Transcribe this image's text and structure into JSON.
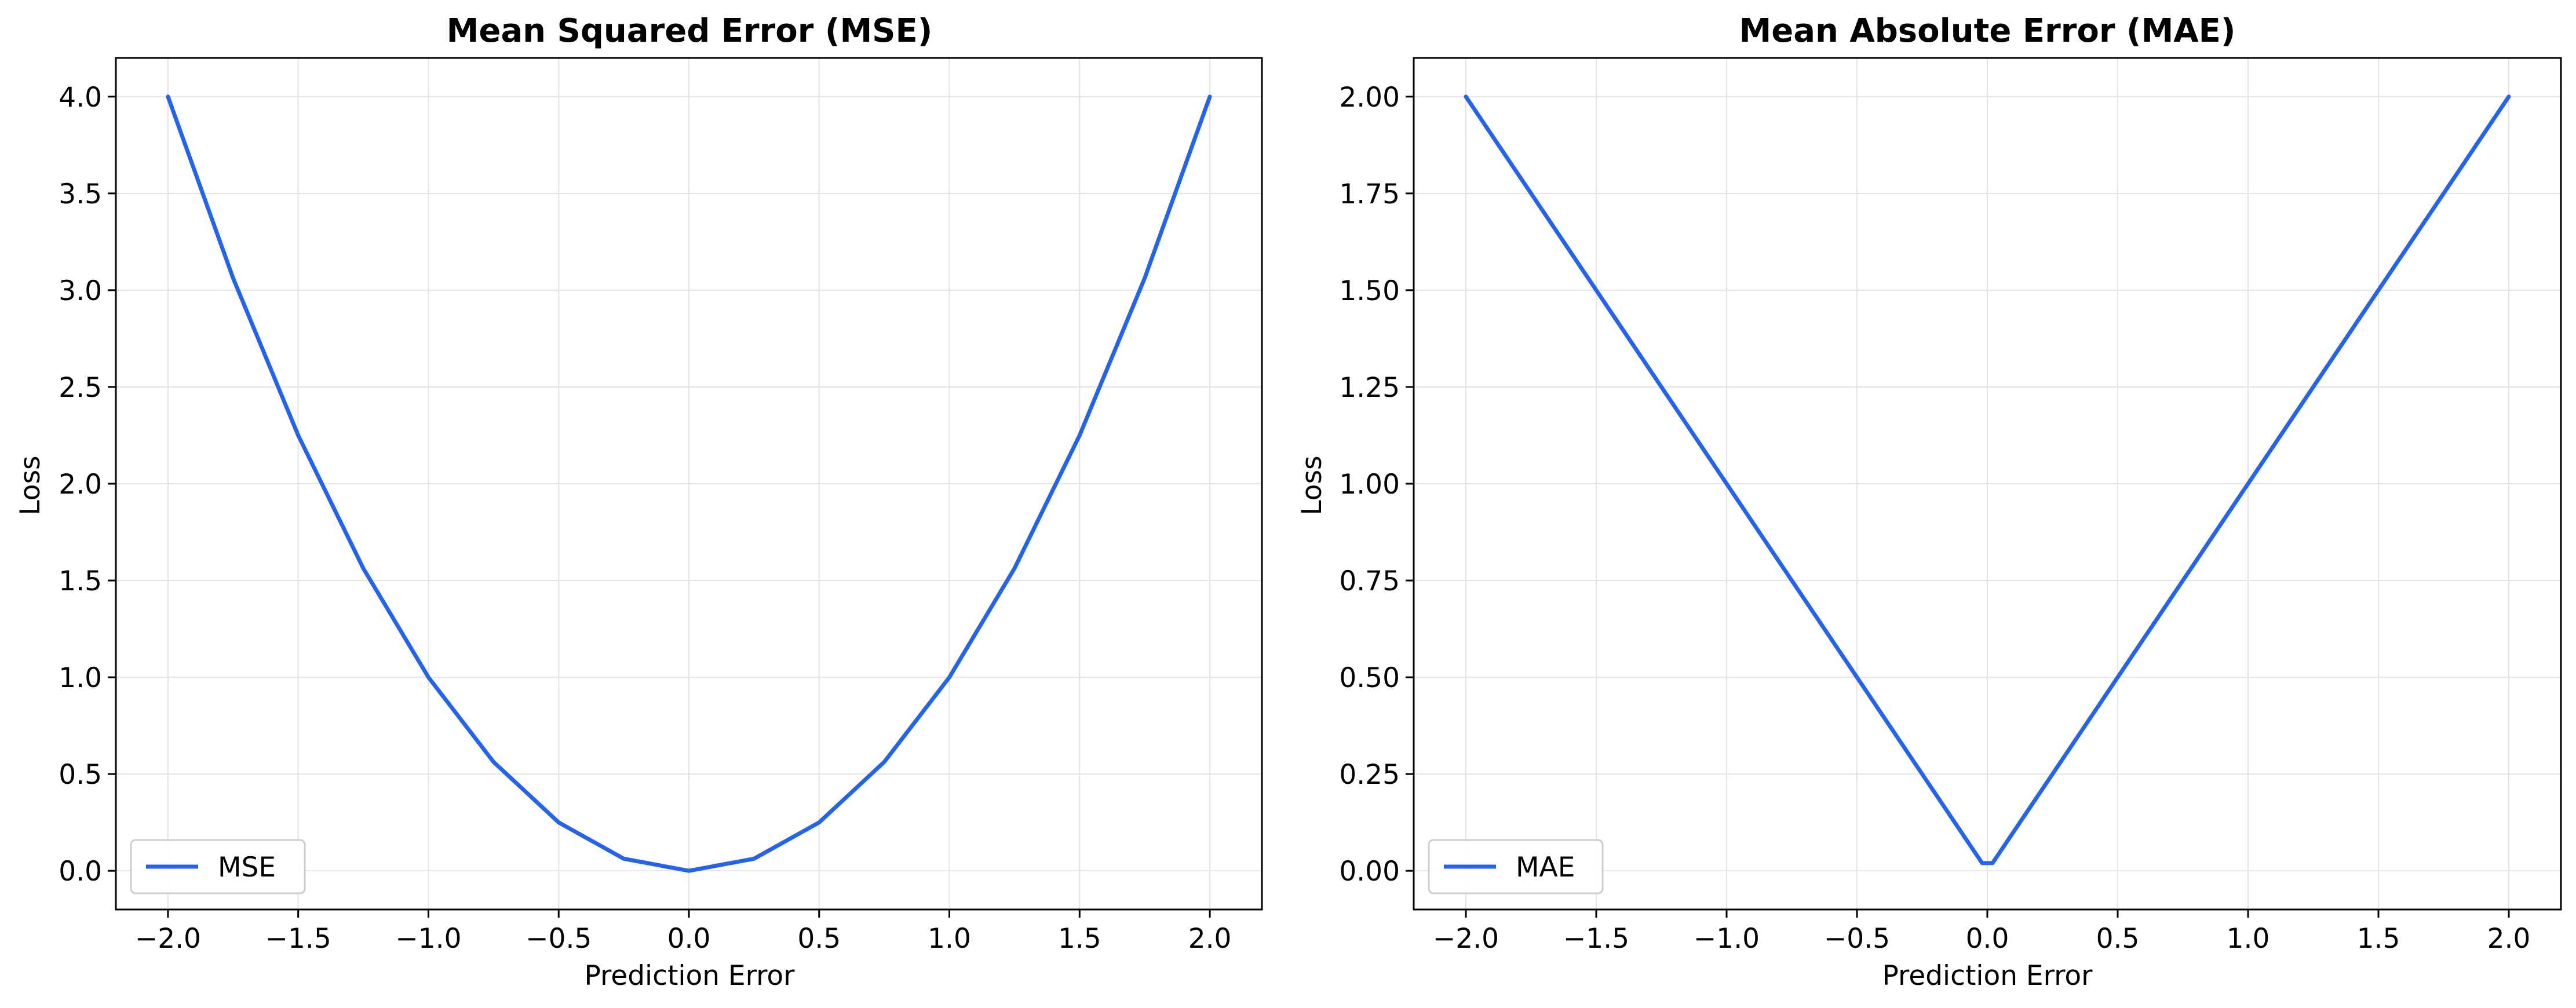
{
  "colors": {
    "line": "#2563eb",
    "grid": "#e3e3e3",
    "axis": "#000000",
    "legend_border": "#cccccc"
  },
  "chart_data": [
    {
      "type": "line",
      "title": "Mean Squared Error (MSE)",
      "xlabel": "Prediction Error",
      "ylabel": "Loss",
      "xlim": [
        -2.2,
        2.2
      ],
      "ylim": [
        -0.2,
        4.2
      ],
      "xticks": [
        -2.0,
        -1.5,
        -1.0,
        -0.5,
        0.0,
        0.5,
        1.0,
        1.5,
        2.0
      ],
      "xtick_labels": [
        "−2.0",
        "−1.5",
        "−1.0",
        "−0.5",
        "0.0",
        "0.5",
        "1.0",
        "1.5",
        "2.0"
      ],
      "yticks": [
        0.0,
        0.5,
        1.0,
        1.5,
        2.0,
        2.5,
        3.0,
        3.5,
        4.0
      ],
      "ytick_labels": [
        "0.0",
        "0.5",
        "1.0",
        "1.5",
        "2.0",
        "2.5",
        "3.0",
        "3.5",
        "4.0"
      ],
      "grid": true,
      "legend_position": "lower-left",
      "series": [
        {
          "name": "MSE",
          "x": [
            -2.0,
            -1.75,
            -1.5,
            -1.25,
            -1.0,
            -0.75,
            -0.5,
            -0.25,
            0.0,
            0.25,
            0.5,
            0.75,
            1.0,
            1.25,
            1.5,
            1.75,
            2.0
          ],
          "y": [
            4.0,
            3.0625,
            2.25,
            1.5625,
            1.0,
            0.5625,
            0.25,
            0.0625,
            0.0,
            0.0625,
            0.25,
            0.5625,
            1.0,
            1.5625,
            2.25,
            3.0625,
            4.0
          ]
        }
      ]
    },
    {
      "type": "line",
      "title": "Mean Absolute Error (MAE)",
      "xlabel": "Prediction Error",
      "ylabel": "Loss",
      "xlim": [
        -2.2,
        2.2
      ],
      "ylim": [
        -0.1,
        2.1
      ],
      "xticks": [
        -2.0,
        -1.5,
        -1.0,
        -0.5,
        0.0,
        0.5,
        1.0,
        1.5,
        2.0
      ],
      "xtick_labels": [
        "−2.0",
        "−1.5",
        "−1.0",
        "−0.5",
        "0.0",
        "0.5",
        "1.0",
        "1.5",
        "2.0"
      ],
      "yticks": [
        0.0,
        0.25,
        0.5,
        0.75,
        1.0,
        1.25,
        1.5,
        1.75,
        2.0
      ],
      "ytick_labels": [
        "0.00",
        "0.25",
        "0.50",
        "0.75",
        "1.00",
        "1.25",
        "1.50",
        "1.75",
        "2.00"
      ],
      "grid": true,
      "legend_position": "lower-left",
      "series": [
        {
          "name": "MAE",
          "x": [
            -2.0,
            -0.02,
            0.02,
            2.0
          ],
          "y": [
            2.0,
            0.02,
            0.02,
            2.0
          ]
        }
      ]
    }
  ]
}
